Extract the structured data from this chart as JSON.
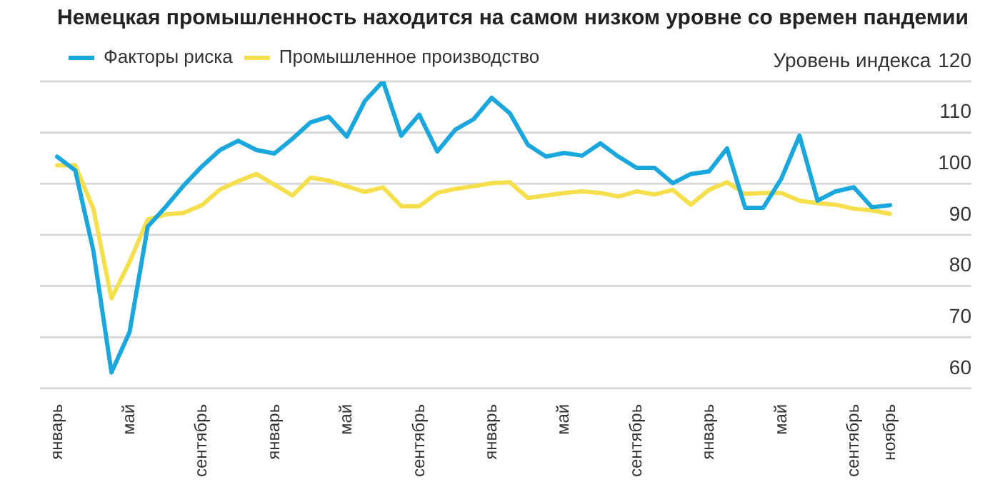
{
  "chart_data": {
    "type": "line",
    "title": "Немецкая промышленность находится на самом низком уровне со времен пандемии",
    "ylabel": "Уровень индекса",
    "categories": [
      "январь",
      null,
      null,
      null,
      "май",
      null,
      null,
      null,
      "сентябрь",
      null,
      null,
      null,
      "январь",
      null,
      null,
      null,
      "май",
      null,
      null,
      null,
      "сентябрь",
      null,
      null,
      null,
      "январь",
      null,
      null,
      null,
      "май",
      null,
      null,
      null,
      "сентябрь",
      null,
      null,
      null,
      "январь",
      null,
      null,
      null,
      "май",
      null,
      null,
      null,
      "сентябрь",
      null,
      "ноябрь"
    ],
    "series": [
      {
        "name": "Факторы риска",
        "color": "#1aa7dd",
        "values": [
          105.3,
          102.6,
          86.9,
          63.1,
          71,
          91.6,
          95.5,
          99.7,
          103.4,
          106.6,
          108.4,
          106.6,
          105.9,
          108.8,
          112,
          113.1,
          109.2,
          116.2,
          120,
          109.4,
          113.5,
          106.3,
          110.6,
          112.6,
          116.8,
          113.8,
          107.6,
          105.3,
          106,
          105.5,
          107.9,
          105.3,
          103.1,
          103.1,
          100.1,
          101.9,
          102.4,
          106.9,
          95.3,
          95.3,
          101,
          109.4,
          96.7,
          98.5,
          99.3,
          95.4,
          95.8
        ]
      },
      {
        "name": "Промышленное производство",
        "color": "#f5df4d",
        "values": [
          103.6,
          103.6,
          95.1,
          77.6,
          84.7,
          93,
          94,
          94.3,
          95.8,
          98.9,
          100.5,
          101.9,
          99.8,
          97.7,
          101.2,
          100.6,
          99.5,
          98.4,
          99.3,
          95.6,
          95.6,
          98.2,
          99,
          99.5,
          100.1,
          100.3,
          97.2,
          97.7,
          98.2,
          98.5,
          98.2,
          97.5,
          98.5,
          97.9,
          98.8,
          95.9,
          98.8,
          100.3,
          98,
          98.2,
          98.2,
          96.7,
          96.2,
          95.9,
          95.1,
          94.8,
          94.1
        ]
      }
    ],
    "ylim": [
      60,
      120
    ],
    "yticks": [
      60,
      70,
      80,
      90,
      100,
      110,
      120
    ],
    "grid": "y",
    "legend": "top left",
    "marker": "none",
    "line_style": "solid"
  }
}
